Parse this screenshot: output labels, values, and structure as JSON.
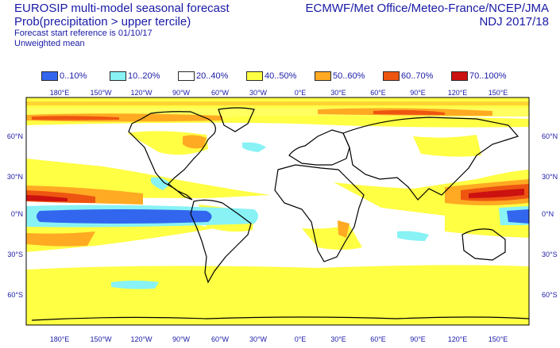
{
  "header": {
    "title": "EUROSIP multi-model seasonal forecast",
    "subtitle": "Prob(precipitation > upper tercile)",
    "start_reference": "Forecast start reference is 01/10/17",
    "weighting": "Unweighted mean",
    "agencies": "ECMWF/Met Office/Meteo-France/NCEP/JMA",
    "season": "NDJ 2017/18"
  },
  "legend": [
    {
      "label": "0..10%",
      "color": "#3366ee"
    },
    {
      "label": "10..20%",
      "color": "#88f2f5"
    },
    {
      "label": "20..40%",
      "color": "#ffffff"
    },
    {
      "label": "40..50%",
      "color": "#ffff44"
    },
    {
      "label": "50..60%",
      "color": "#ffaa22"
    },
    {
      "label": "60..70%",
      "color": "#ee5511"
    },
    {
      "label": "70..100%",
      "color": "#cc1111"
    }
  ],
  "map": {
    "lon_labels": [
      "180°E",
      "150°W",
      "120°W",
      "90°W",
      "60°W",
      "30°W",
      "0°E",
      "30°E",
      "60°E",
      "90°E",
      "120°E",
      "150°E"
    ],
    "lat_labels": [
      "60°N",
      "30°N",
      "0°N",
      "30°S",
      "60°S"
    ],
    "central_longitude": 0
  }
}
